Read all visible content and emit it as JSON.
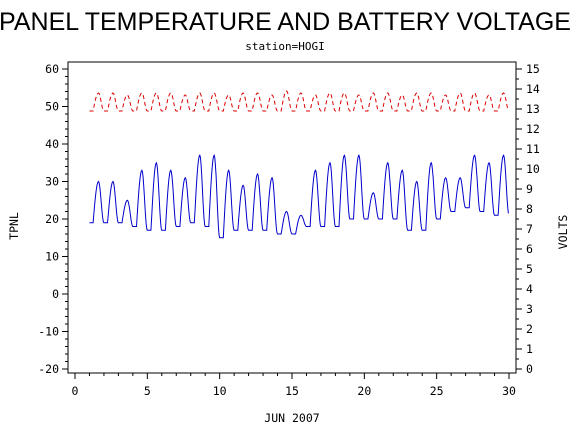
{
  "chart_data": {
    "type": "line",
    "title": "PANEL TEMPERATURE AND BATTERY VOLTAGE",
    "subtitle": "station=HOGI",
    "xlabel": "JUN 2007",
    "ylabel_left": "TPNL",
    "ylabel_right": "VOLTS",
    "x_ticks": [
      "0",
      "5",
      "10",
      "15",
      "20",
      "25",
      "30"
    ],
    "y_left_ticks": [
      "-20",
      "-10",
      "0",
      "10",
      "20",
      "30",
      "40",
      "50",
      "60"
    ],
    "y_right_ticks": [
      "0",
      "1",
      "2",
      "3",
      "4",
      "5",
      "6",
      "7",
      "8",
      "9",
      "10",
      "11",
      "12",
      "13",
      "14",
      "15"
    ],
    "xlim": [
      0,
      30
    ],
    "ylim_left": [
      -20,
      60
    ],
    "ylim_right": [
      0,
      15
    ],
    "colors": {
      "temperature": "#0000cc",
      "voltage": "#dd0000"
    },
    "series": [
      {
        "axis": "left",
        "line": "solid",
        "color": "#0000cc",
        "daily_min": [
          19,
          19,
          19,
          18,
          17,
          17,
          18,
          19,
          18,
          15,
          17,
          17,
          17,
          16,
          16,
          18,
          18,
          18,
          20,
          20,
          20,
          20,
          17,
          17,
          20,
          22,
          23,
          22,
          21
        ],
        "daily_max": [
          30,
          30,
          25,
          33,
          35,
          33,
          31,
          37,
          37,
          33,
          29,
          32,
          31,
          22,
          21,
          33,
          35,
          37,
          37,
          27,
          35,
          33,
          30,
          35,
          31,
          31,
          37,
          35,
          37
        ]
      },
      {
        "axis": "right",
        "line": "dashed",
        "color": "#dd0000",
        "daily_min": [
          12.9,
          12.9,
          12.9,
          12.9,
          12.9,
          12.9,
          12.9,
          12.9,
          12.9,
          12.9,
          12.9,
          12.9,
          12.9,
          12.9,
          12.9,
          12.9,
          12.9,
          12.9,
          12.9,
          12.9,
          12.9,
          12.9,
          12.9,
          12.9,
          12.9,
          12.9,
          12.9,
          12.9,
          12.9
        ],
        "daily_max": [
          13.8,
          13.8,
          13.7,
          13.8,
          13.8,
          13.8,
          13.7,
          13.8,
          13.8,
          13.7,
          13.8,
          13.8,
          13.7,
          13.9,
          13.8,
          13.7,
          13.8,
          13.8,
          13.7,
          13.8,
          13.8,
          13.7,
          13.8,
          13.8,
          13.7,
          13.8,
          13.8,
          13.7,
          13.8
        ]
      }
    ]
  }
}
